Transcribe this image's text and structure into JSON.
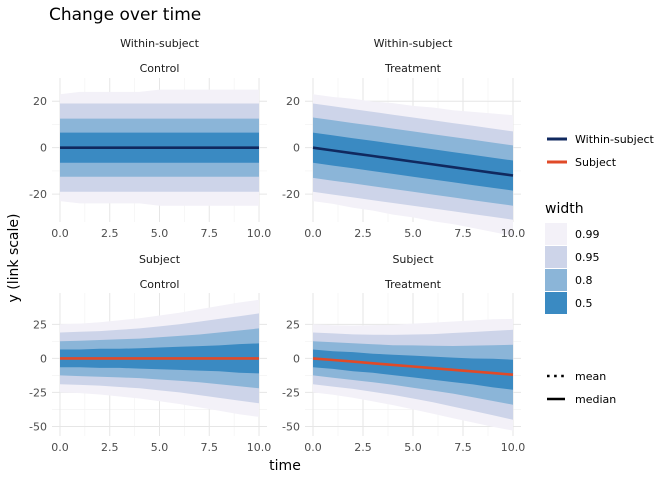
{
  "chart_data": {
    "type": "area",
    "title": "Change over time",
    "xlabel": "time",
    "ylabel": "y (link scale)",
    "x": [
      0,
      1,
      2,
      3,
      4,
      5,
      6,
      7,
      8,
      9,
      10
    ],
    "x_ticks": [
      0,
      2.5,
      5,
      7.5,
      10
    ],
    "x_tick_labels": [
      "0.0",
      "2.5",
      "5.0",
      "7.5",
      "10.0"
    ],
    "xlim": [
      -0.4,
      10.4
    ],
    "grid": true,
    "legend_position": "right",
    "rows": [
      {
        "strip_label": "Within-subject",
        "ylim": [
          -32,
          30
        ],
        "y_ticks": [
          -20,
          0,
          20
        ],
        "y_tick_labels": [
          "-20",
          "0",
          "20"
        ],
        "panels": [
          {
            "strip_label": "Within-subject",
            "facet_label": "Control",
            "line_series": "Within-subject",
            "center": [
              0,
              0,
              0,
              0,
              0,
              0,
              0,
              0,
              0,
              0,
              0
            ],
            "bands": {
              "0.99": [
                23,
                24,
                24,
                24,
                24,
                25,
                25,
                25,
                25,
                25,
                25
              ],
              "0.95": [
                19,
                19,
                19,
                19,
                19,
                19,
                19,
                19,
                19,
                19,
                19
              ],
              "0.8": [
                12.5,
                12.5,
                12.5,
                12.5,
                12.5,
                12.5,
                12.5,
                12.5,
                12.5,
                12.5,
                12.5
              ],
              "0.5": [
                6.5,
                6.5,
                6.5,
                6.5,
                6.5,
                6.5,
                6.5,
                6.5,
                6.5,
                6.5,
                6.5
              ]
            }
          },
          {
            "strip_label": "Within-subject",
            "facet_label": "Treatment",
            "line_series": "Within-subject",
            "center": [
              0,
              -1.2,
              -2.4,
              -3.6,
              -4.8,
              -6,
              -7.2,
              -8.4,
              -9.6,
              -10.8,
              -12
            ],
            "bands": {
              "0.99": [
                23,
                23,
                23.5,
                23.5,
                24,
                24,
                24.5,
                24.5,
                25,
                25.5,
                26
              ],
              "0.95": [
                19,
                19,
                19,
                19,
                19,
                19,
                19,
                19,
                19,
                19,
                19
              ],
              "0.8": [
                13,
                13,
                13,
                13,
                13,
                13,
                13,
                13,
                13,
                13,
                13
              ],
              "0.5": [
                6.5,
                6.5,
                6.5,
                6.5,
                6.5,
                6.5,
                6.5,
                6.5,
                6.5,
                6.5,
                6.5
              ]
            }
          }
        ]
      },
      {
        "strip_label": "Subject",
        "ylim": [
          -57,
          48
        ],
        "y_ticks": [
          -50,
          -25,
          0,
          25
        ],
        "y_tick_labels": [
          "-50",
          "-25",
          "0",
          "25"
        ],
        "panels": [
          {
            "strip_label": "Subject",
            "facet_label": "Control",
            "line_series": "Subject",
            "center": [
              0,
              0,
              0,
              0,
              0,
              0,
              0,
              0,
              0,
              0,
              0
            ],
            "bands": {
              "0.99": [
                25,
                25.5,
                26.5,
                28,
                29.5,
                31.5,
                33.5,
                36,
                38.5,
                41,
                43
              ],
              "0.95": [
                19,
                19.5,
                20,
                21,
                22,
                23.5,
                25,
                27,
                29,
                31,
                33
              ],
              "0.8": [
                12.5,
                13,
                13.5,
                14,
                14.5,
                15.5,
                16.5,
                17.5,
                19,
                20.5,
                22
              ],
              "0.5": [
                6.5,
                6.5,
                7,
                7,
                7.5,
                8,
                8.5,
                9,
                9.5,
                10.5,
                11
              ]
            }
          },
          {
            "strip_label": "Subject",
            "facet_label": "Treatment",
            "line_series": "Subject",
            "center": [
              0,
              -1.2,
              -2.4,
              -3.6,
              -4.8,
              -6,
              -7.2,
              -8.4,
              -9.6,
              -10.8,
              -12
            ],
            "bands": {
              "0.99": [
                25,
                25.5,
                26.5,
                28,
                29.5,
                31.5,
                33.5,
                35.5,
                37.5,
                39.5,
                41
              ],
              "0.95": [
                19,
                19.5,
                20,
                21,
                22,
                23.5,
                25,
                27,
                29,
                31,
                33
              ],
              "0.8": [
                12.5,
                13,
                13.5,
                14,
                14.5,
                15.5,
                16.5,
                17.5,
                19,
                20.5,
                22
              ],
              "0.5": [
                6.5,
                6.5,
                7,
                7,
                7.5,
                8,
                8.5,
                9,
                9.5,
                10.5,
                11
              ]
            }
          }
        ]
      }
    ],
    "line_legend": [
      {
        "name": "Within-subject",
        "color": "#10295f"
      },
      {
        "name": "Subject",
        "color": "#e04a28"
      }
    ],
    "width_legend": {
      "title": "width",
      "entries": [
        {
          "label": "0.99",
          "color": "#f3f1f8"
        },
        {
          "label": "0.95",
          "color": "#cdd4e9"
        },
        {
          "label": "0.8",
          "color": "#8bb5d8"
        },
        {
          "label": "0.5",
          "color": "#3a8ac2"
        }
      ]
    },
    "point_legend": [
      {
        "label": "mean",
        "style": "dotted"
      },
      {
        "label": "median",
        "style": "solid"
      }
    ]
  }
}
